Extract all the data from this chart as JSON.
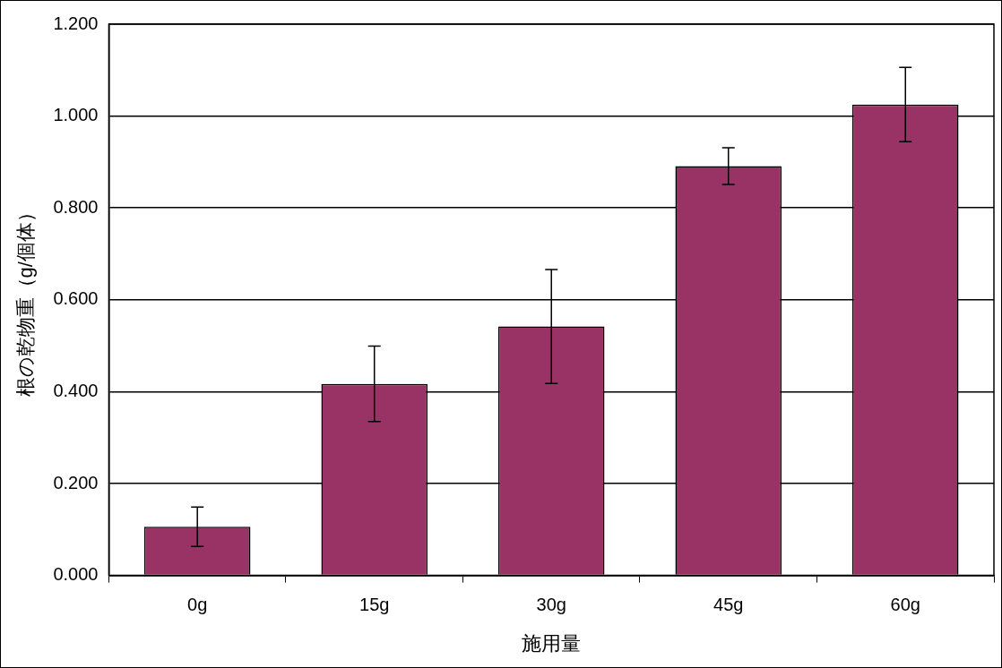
{
  "chart_data": {
    "type": "bar",
    "xlabel": "施用量",
    "ylabel": "根の乾物重（g/個体）",
    "categories": [
      "0g",
      "15g",
      "30g",
      "45g",
      "60g"
    ],
    "values": [
      0.106,
      0.417,
      0.542,
      0.891,
      1.025
    ],
    "errors": [
      0.043,
      0.082,
      0.124,
      0.04,
      0.081
    ],
    "color": "#993366",
    "ylim": [
      0,
      1.2
    ],
    "yticks": [
      {
        "value": 0,
        "label": "0.000"
      },
      {
        "value": 0.2,
        "label": "0.200"
      },
      {
        "value": 0.4,
        "label": "0.400"
      },
      {
        "value": 0.6,
        "label": "0.600"
      },
      {
        "value": 0.8,
        "label": "0.800"
      },
      {
        "value": 1,
        "label": "1.000"
      },
      {
        "value": 1.2,
        "label": "1.200"
      }
    ],
    "grid": "y",
    "legend": false
  }
}
